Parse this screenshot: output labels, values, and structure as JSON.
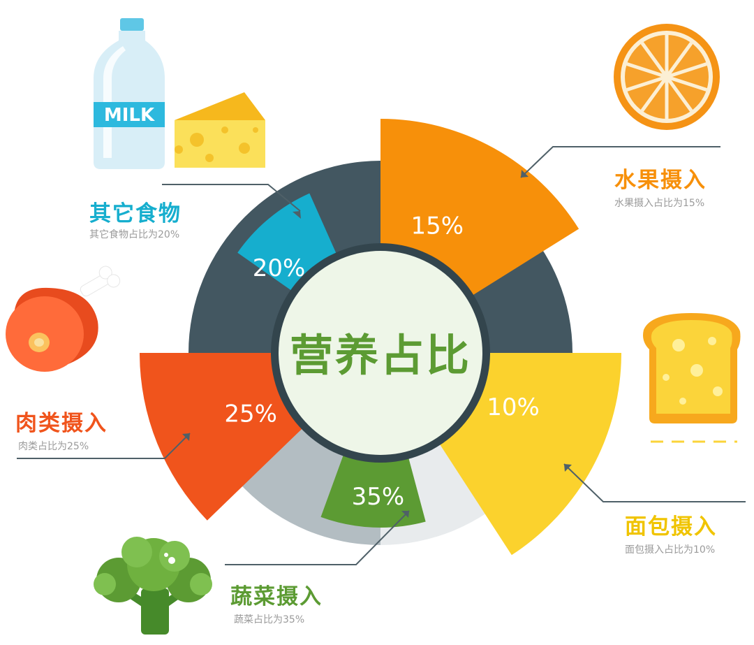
{
  "center_title": "营养占比",
  "milk_text": "MILK",
  "chart_data": {
    "type": "pie",
    "title": "营养占比",
    "slices": [
      {
        "key": "fruit",
        "name": "水果摄入",
        "value": 15,
        "label": "15%",
        "desc": "水果摄入占比为15%",
        "color": "#f7900a"
      },
      {
        "key": "bread",
        "name": "面包摄入",
        "value": 10,
        "label": "10%",
        "desc": "面包摄入占比为10%",
        "color": "#fbd22d"
      },
      {
        "key": "veg",
        "name": "蔬菜摄入",
        "value": 35,
        "label": "35%",
        "desc": "蔬菜占比为35%",
        "color": "#5c9b33"
      },
      {
        "key": "meat",
        "name": "肉类摄入",
        "value": 25,
        "label": "25%",
        "desc": "肉类占比为25%",
        "color": "#f0541c"
      },
      {
        "key": "other",
        "name": "其它食物",
        "value": 20,
        "label": "20%",
        "desc": "其它食物占比为20%",
        "color": "#16aece"
      }
    ]
  },
  "colors": {
    "ring_dark": "#435761",
    "ring_light": "#e8ebed",
    "ring_grey": "#b3bdc2",
    "center_fill": "#eef6e8",
    "center_text": "#5c9b33",
    "leader_line": "#4f6068"
  },
  "icons": [
    "milk-bottle-icon",
    "cheese-icon",
    "orange-slice-icon",
    "ham-icon",
    "bread-slice-icon",
    "broccoli-icon"
  ]
}
